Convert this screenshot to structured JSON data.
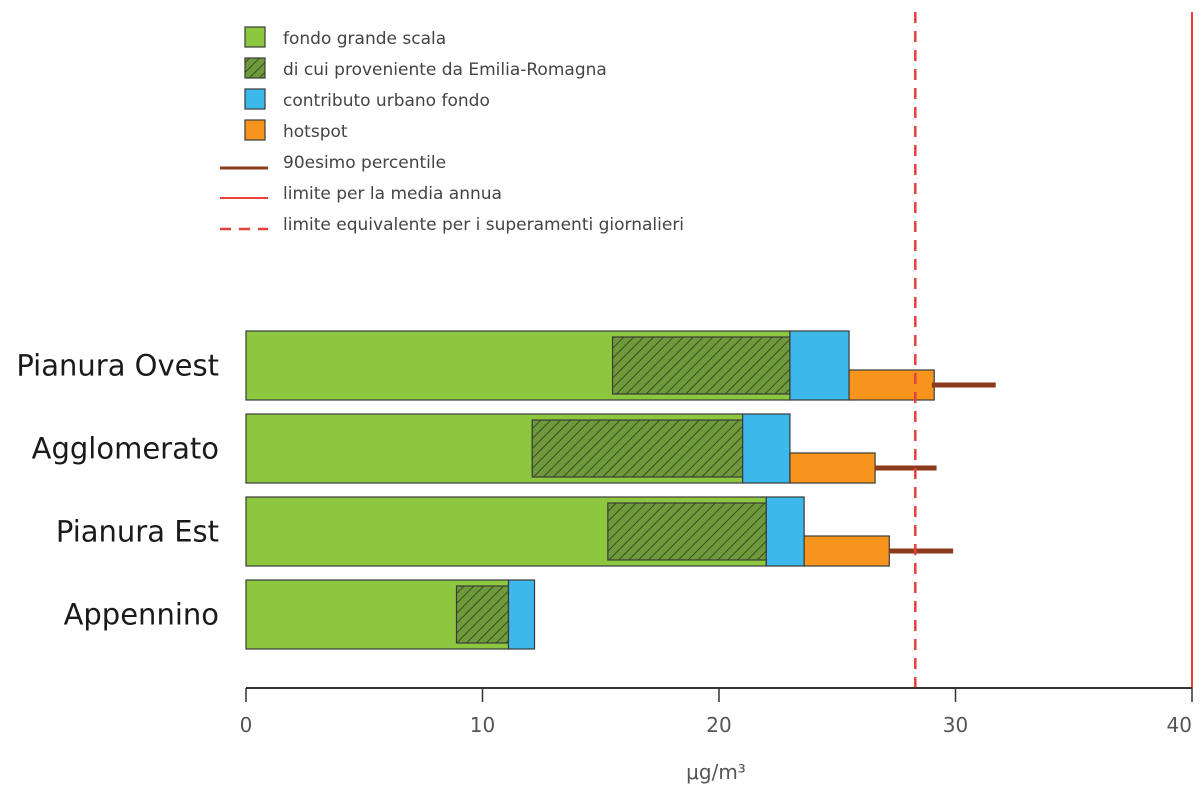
{
  "chart_data": {
    "type": "bar",
    "orientation": "horizontal",
    "stacked": true,
    "categories": [
      "Pianura Ovest",
      "Agglomerato",
      "Pianura Est",
      "Appennino"
    ],
    "series": [
      {
        "name": "fondo grande scala",
        "values": [
          23.0,
          21.0,
          22.0,
          11.1
        ]
      },
      {
        "name": "di cui proveniente da Emilia-Romagna",
        "range_start": [
          15.5,
          12.1,
          15.3,
          8.9
        ],
        "range_end": [
          23.0,
          21.0,
          22.0,
          11.1
        ]
      },
      {
        "name": "contributo urbano fondo",
        "values": [
          2.5,
          2.0,
          1.6,
          1.1
        ]
      },
      {
        "name": "hotspot",
        "values": [
          3.6,
          3.6,
          3.6,
          null
        ]
      },
      {
        "name": "90esimo percentile",
        "range_start": [
          29.0,
          26.6,
          27.2,
          null
        ],
        "range_end": [
          31.7,
          29.2,
          29.9,
          null
        ]
      }
    ],
    "reference_lines": [
      {
        "name": "limite per la media annua",
        "value": 40,
        "style": "solid"
      },
      {
        "name": "limite equivalente per i superamenti giornalieri",
        "value": 28.3,
        "style": "dashed"
      }
    ],
    "xlabel": "μg/m³",
    "xlim": [
      0,
      40
    ],
    "xticks": [
      0,
      10,
      20,
      30,
      40
    ],
    "legend_position": "top-left",
    "grid": false,
    "colors": {
      "fondo": "#8dc63f",
      "hatch_bg": "#6f9a3c",
      "hatch_line": "#3a4d22",
      "urbano": "#3db8ea",
      "hotspot": "#f7941d",
      "percentile": "#8b3a1e",
      "limit": "#e8403a",
      "bar_stroke": "#3a3a3a",
      "axis": "#333333"
    }
  }
}
